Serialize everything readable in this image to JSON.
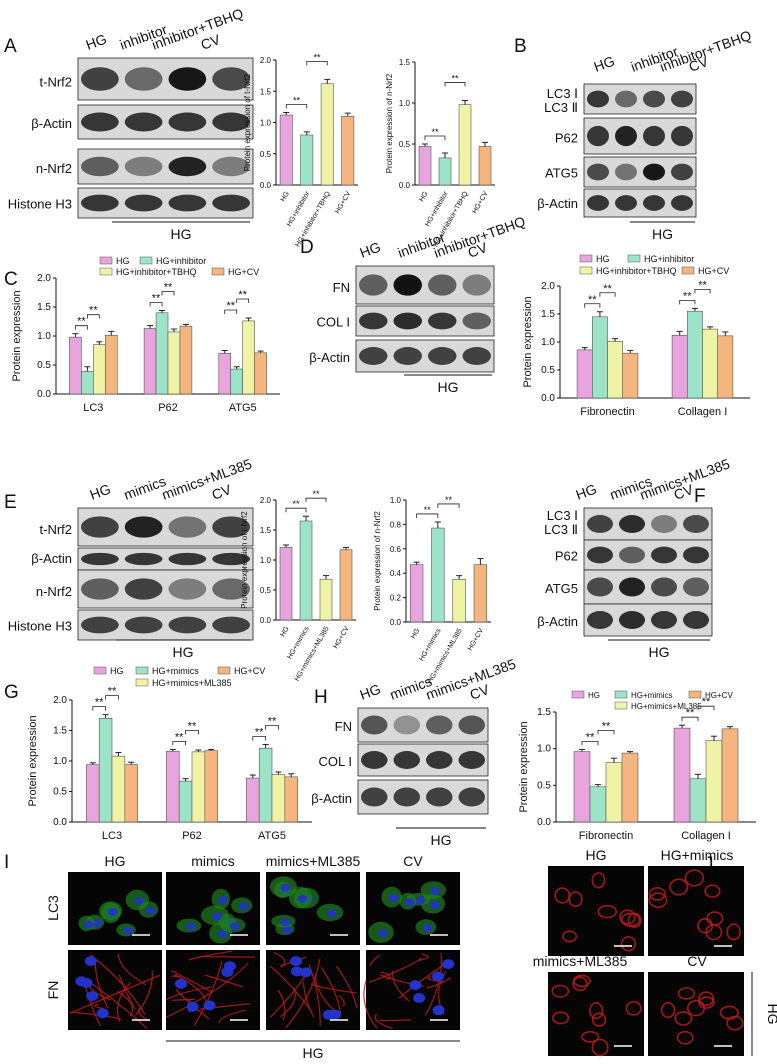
{
  "colors": {
    "HG": "#e7a4dd",
    "inhibitor": "#9de3c8",
    "TBHQ": "#eef3a6",
    "CV": "#f4b57f",
    "mimics": "#9de3c8",
    "ML385": "#eef3a6",
    "bar_edge": "#555555",
    "lc3_stain": "#1f7f1f",
    "fn_stain": "#c21a1a",
    "nuclei": "#2433c9",
    "background_dark": "#050505"
  },
  "panel_letters": [
    "A",
    "B",
    "C",
    "D",
    "E",
    "F",
    "G",
    "H",
    "I",
    "J"
  ],
  "sig": "**",
  "hg_label": "HG",
  "panelA": {
    "blot_headers": [
      "HG",
      "inhibitor",
      "inhibitor+TBHQ",
      "CV"
    ],
    "blot_rows": [
      "t-Nrf2",
      "β-Actin",
      "n-Nrf2",
      "Histone H3"
    ]
  },
  "panelB": {
    "blot_headers": [
      "HG",
      "inhibitor",
      "inhibitor+TBHQ",
      "CV"
    ],
    "lc3_labels": [
      "LC3 Ⅰ",
      "LC3 Ⅱ"
    ],
    "blot_rows": [
      "P62",
      "ATG5",
      "β-Actin"
    ]
  },
  "panelD": {
    "blot_headers": [
      "HG",
      "inhibitor",
      "inhibitor+TBHQ",
      "CV"
    ],
    "blot_rows": [
      "FN",
      "COL I",
      "β-Actin"
    ]
  },
  "panelE": {
    "blot_headers": [
      "HG",
      "mimics",
      "mimics+ML385",
      "CV"
    ],
    "blot_rows": [
      "t-Nrf2",
      "β-Actin",
      "n-Nrf2",
      "Histone H3"
    ]
  },
  "panelF": {
    "blot_headers": [
      "HG",
      "mimics",
      "mimics+ML385",
      "CV"
    ],
    "lc3_labels": [
      "LC3 Ⅰ",
      "LC3 Ⅱ"
    ],
    "blot_rows": [
      "P62",
      "ATG5",
      "β-Actin"
    ]
  },
  "panelH": {
    "blot_headers": [
      "HG",
      "mimics",
      "mimics+ML385",
      "CV"
    ],
    "blot_rows": [
      "FN",
      "COL I",
      "β-Actin"
    ]
  },
  "panelI": {
    "col_headers": [
      "HG",
      "mimics",
      "mimics+ML385",
      "CV"
    ],
    "row_labels": [
      "LC3",
      "FN"
    ]
  },
  "panelJ": {
    "labels": [
      "HG",
      "HG+mimics",
      "mimics+ML385",
      "CV"
    ]
  },
  "chart_data": [
    {
      "id": "A1",
      "type": "bar",
      "ylabel": "Protein expression of t-Nrf2",
      "categories": [
        "HG",
        "HG+inhibitor",
        "HG+inhibitor+TBHQ",
        "HG+CV"
      ],
      "values": [
        1.12,
        0.8,
        1.62,
        1.1
      ],
      "errors": [
        0.04,
        0.05,
        0.07,
        0.05
      ],
      "ylim": [
        0,
        2.0
      ],
      "yticks": [
        0.0,
        0.5,
        1.0,
        1.5,
        2.0
      ],
      "tick_labels": [
        "0.0",
        "0.5",
        "1.0",
        "1.5",
        "2.0"
      ],
      "series_colors": [
        "HG",
        "inhibitor",
        "TBHQ",
        "CV"
      ],
      "brackets": [
        {
          "a": 0,
          "b": 1,
          "label": "**"
        },
        {
          "a": 1,
          "b": 2,
          "label": "**"
        }
      ]
    },
    {
      "id": "A2",
      "type": "bar",
      "ylabel": "Protein expression of n-Nrf2",
      "categories": [
        "HG",
        "HG+inhibitor",
        "HG+inhibitor+TBHQ",
        "HG+CV"
      ],
      "values": [
        0.47,
        0.33,
        0.98,
        0.47
      ],
      "errors": [
        0.03,
        0.06,
        0.05,
        0.05
      ],
      "ylim": [
        0,
        1.5
      ],
      "yticks": [
        0.0,
        0.5,
        1.0,
        1.5
      ],
      "tick_labels": [
        "0.0",
        "0.5",
        "1.0",
        "1.5"
      ],
      "series_colors": [
        "HG",
        "inhibitor",
        "TBHQ",
        "CV"
      ],
      "brackets": [
        {
          "a": 0,
          "b": 1,
          "label": "**"
        },
        {
          "a": 1,
          "b": 2,
          "label": "**"
        }
      ]
    },
    {
      "id": "C",
      "type": "bar",
      "ylabel": "Protein expression",
      "categories": [
        "LC3",
        "P62",
        "ATG5"
      ],
      "legend": [
        "HG",
        "HG+inhibitor",
        "HG+inhibitor+TBHQ",
        "HG+CV"
      ],
      "series": [
        {
          "color": "HG",
          "values": [
            0.98,
            1.13,
            0.7
          ],
          "errors": [
            0.06,
            0.05,
            0.05
          ]
        },
        {
          "color": "inhibitor",
          "values": [
            0.39,
            1.4,
            0.43
          ],
          "errors": [
            0.08,
            0.04,
            0.04
          ]
        },
        {
          "color": "TBHQ",
          "values": [
            0.85,
            1.07,
            1.26
          ],
          "errors": [
            0.05,
            0.05,
            0.05
          ]
        },
        {
          "color": "CV",
          "values": [
            1.01,
            1.17,
            0.71
          ],
          "errors": [
            0.07,
            0.03,
            0.03
          ]
        }
      ],
      "ylim": [
        0,
        2.0
      ],
      "yticks": [
        0.0,
        0.5,
        1.0,
        1.5,
        2.0
      ],
      "tick_labels": [
        "0.0",
        "0.5",
        "1.0",
        "1.5",
        "2.0"
      ],
      "brackets": [
        {
          "g": 0,
          "a": 0,
          "b": 1,
          "label": "**"
        },
        {
          "g": 0,
          "a": 1,
          "b": 2,
          "label": "**"
        },
        {
          "g": 1,
          "a": 0,
          "b": 1,
          "label": "**"
        },
        {
          "g": 1,
          "a": 1,
          "b": 2,
          "label": "**"
        },
        {
          "g": 2,
          "a": 0,
          "b": 1,
          "label": "**"
        },
        {
          "g": 2,
          "a": 1,
          "b": 2,
          "label": "**"
        }
      ]
    },
    {
      "id": "D",
      "type": "bar",
      "ylabel": "Protein expression",
      "categories": [
        "Fibronectin",
        "Collagen I"
      ],
      "legend": [
        "HG",
        "HG+inhibitor",
        "HG+inhibitor+TBHQ",
        "HG+CV"
      ],
      "series": [
        {
          "color": "HG",
          "values": [
            0.86,
            1.12
          ],
          "errors": [
            0.04,
            0.07
          ]
        },
        {
          "color": "inhibitor",
          "values": [
            1.45,
            1.55
          ],
          "errors": [
            0.09,
            0.05
          ]
        },
        {
          "color": "TBHQ",
          "values": [
            1.01,
            1.23
          ],
          "errors": [
            0.05,
            0.04
          ]
        },
        {
          "color": "CV",
          "values": [
            0.8,
            1.11
          ],
          "errors": [
            0.05,
            0.07
          ]
        }
      ],
      "ylim": [
        0,
        2.0
      ],
      "yticks": [
        0.0,
        0.5,
        1.0,
        1.5,
        2.0
      ],
      "tick_labels": [
        "0.0",
        "0.5",
        "1.0",
        "1.5",
        "2.0"
      ],
      "brackets": [
        {
          "g": 0,
          "a": 0,
          "b": 1,
          "label": "**"
        },
        {
          "g": 0,
          "a": 1,
          "b": 2,
          "label": "**"
        },
        {
          "g": 1,
          "a": 0,
          "b": 1,
          "label": "**"
        },
        {
          "g": 1,
          "a": 1,
          "b": 2,
          "label": "**"
        }
      ]
    },
    {
      "id": "E1",
      "type": "bar",
      "ylabel": "Protein expression of t-Nrf2",
      "categories": [
        "HG",
        "HG+mimics",
        "HG+mimics+ML385",
        "HG+CV"
      ],
      "values": [
        1.21,
        1.65,
        0.68,
        1.17
      ],
      "errors": [
        0.04,
        0.08,
        0.06,
        0.04
      ],
      "ylim": [
        0,
        2.0
      ],
      "yticks": [
        0.0,
        0.5,
        1.0,
        1.5,
        2.0
      ],
      "tick_labels": [
        "0.0",
        "0.5",
        "1.0",
        "1.5",
        "2.0"
      ],
      "series_colors": [
        "HG",
        "mimics",
        "ML385",
        "CV"
      ],
      "brackets": [
        {
          "a": 0,
          "b": 1,
          "label": "**"
        },
        {
          "a": 1,
          "b": 2,
          "label": "**"
        }
      ]
    },
    {
      "id": "E2",
      "type": "bar",
      "ylabel": "Protein expression of n-Nrf2",
      "categories": [
        "HG",
        "HG+mimics",
        "HG+mimics+ML385",
        "HG+CV"
      ],
      "values": [
        0.47,
        0.77,
        0.35,
        0.47
      ],
      "errors": [
        0.02,
        0.05,
        0.03,
        0.05
      ],
      "ylim": [
        0,
        1.0
      ],
      "yticks": [
        0.0,
        0.2,
        0.4,
        0.6,
        0.8,
        1.0
      ],
      "tick_labels": [
        "0.0",
        "0.2",
        "0.4",
        "0.6",
        "0.8",
        "1.0"
      ],
      "series_colors": [
        "HG",
        "mimics",
        "ML385",
        "CV"
      ],
      "brackets": [
        {
          "a": 0,
          "b": 1,
          "label": "**"
        },
        {
          "a": 1,
          "b": 2,
          "label": "**"
        }
      ]
    },
    {
      "id": "G",
      "type": "bar",
      "ylabel": "Protein expression",
      "categories": [
        "LC3",
        "P62",
        "ATG5"
      ],
      "legend": [
        "HG",
        "HG+mimics",
        "HG+CV",
        "HG+mimics+ML385"
      ],
      "series": [
        {
          "color": "HG",
          "values": [
            0.94,
            1.16,
            0.72
          ],
          "errors": [
            0.03,
            0.03,
            0.05
          ]
        },
        {
          "color": "mimics",
          "values": [
            1.7,
            0.67,
            1.21
          ],
          "errors": [
            0.06,
            0.04,
            0.06
          ]
        },
        {
          "color": "ML385",
          "values": [
            1.08,
            1.15,
            0.78
          ],
          "errors": [
            0.06,
            0.03,
            0.04
          ]
        },
        {
          "color": "CV",
          "values": [
            0.94,
            1.17,
            0.74
          ],
          "errors": [
            0.04,
            0.02,
            0.05
          ]
        }
      ],
      "ylim": [
        0,
        2.0
      ],
      "yticks": [
        0.0,
        0.5,
        1.0,
        1.5,
        2.0
      ],
      "tick_labels": [
        "0.0",
        "0.5",
        "1.0",
        "1.5",
        "2.0"
      ],
      "brackets": [
        {
          "g": 0,
          "a": 0,
          "b": 1,
          "label": "**"
        },
        {
          "g": 0,
          "a": 1,
          "b": 2,
          "label": "**"
        },
        {
          "g": 1,
          "a": 0,
          "b": 1,
          "label": "**"
        },
        {
          "g": 1,
          "a": 1,
          "b": 2,
          "label": "**"
        },
        {
          "g": 2,
          "a": 0,
          "b": 1,
          "label": "**"
        },
        {
          "g": 2,
          "a": 1,
          "b": 2,
          "label": "**"
        }
      ]
    },
    {
      "id": "H",
      "type": "bar",
      "ylabel": "Protein expression",
      "categories": [
        "Fibronectin",
        "Collagen I"
      ],
      "legend": [
        "HG",
        "HG+mimics",
        "HG+CV",
        "HG+mimics+ML385"
      ],
      "series": [
        {
          "color": "HG",
          "values": [
            0.96,
            1.28
          ],
          "errors": [
            0.03,
            0.04
          ]
        },
        {
          "color": "mimics",
          "values": [
            0.48,
            0.59
          ],
          "errors": [
            0.03,
            0.06
          ]
        },
        {
          "color": "ML385",
          "values": [
            0.81,
            1.11
          ],
          "errors": [
            0.06,
            0.06
          ]
        },
        {
          "color": "CV",
          "values": [
            0.94,
            1.27
          ],
          "errors": [
            0.02,
            0.03
          ]
        }
      ],
      "ylim": [
        0,
        1.5
      ],
      "yticks": [
        0.0,
        0.5,
        1.0,
        1.5
      ],
      "tick_labels": [
        "0.0",
        "0.5",
        "1.0",
        "1.5"
      ],
      "brackets": [
        {
          "g": 0,
          "a": 0,
          "b": 1,
          "label": "**"
        },
        {
          "g": 0,
          "a": 1,
          "b": 2,
          "label": "**"
        },
        {
          "g": 1,
          "a": 0,
          "b": 1,
          "label": "**"
        },
        {
          "g": 1,
          "a": 1,
          "b": 2,
          "label": "**"
        }
      ]
    }
  ]
}
